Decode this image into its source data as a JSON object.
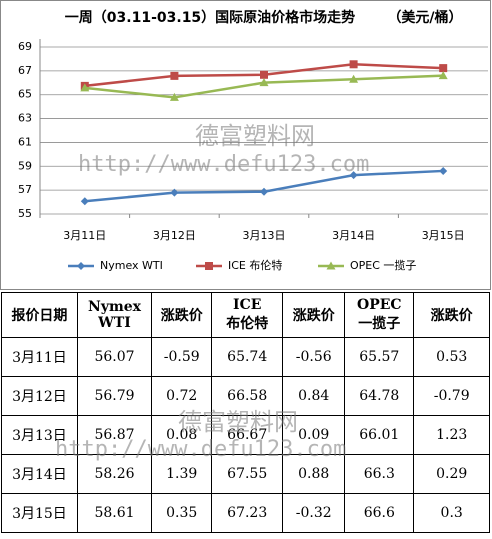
{
  "chart_data": {
    "type": "line",
    "title": "一周（03.11-03.15）国际原油价格市场走势",
    "subtitle": "（美元/桶）",
    "categories": [
      "3月11日",
      "3月12日",
      "3月13日",
      "3月14日",
      "3月15日"
    ],
    "series": [
      {
        "name": "Nymex WTI",
        "color": "#4a7ebb",
        "marker": "diamond",
        "values": [
          56.07,
          56.79,
          56.87,
          58.26,
          58.61
        ]
      },
      {
        "name": "ICE 布伦特",
        "color": "#be4b48",
        "marker": "square",
        "values": [
          65.74,
          66.58,
          66.67,
          67.55,
          67.23
        ]
      },
      {
        "name": "OPEC 一揽子",
        "color": "#98b954",
        "marker": "triangle",
        "values": [
          65.57,
          64.78,
          66.01,
          66.3,
          66.6
        ]
      }
    ],
    "ylim": [
      55,
      69
    ],
    "yticks": [
      55,
      57,
      59,
      61,
      63,
      65,
      67,
      69
    ],
    "grid": true,
    "legend": "bottom"
  },
  "watermark": {
    "name": "德富塑料网",
    "url": "http://www.defu123.com"
  },
  "table": {
    "header": [
      [
        "报价日期"
      ],
      [
        "Nymex",
        "WTI"
      ],
      [
        "涨跌价"
      ],
      [
        "ICE",
        "布伦特"
      ],
      [
        "涨跌价"
      ],
      [
        "OPEC",
        "一揽子"
      ],
      [
        "涨跌价"
      ]
    ],
    "rows": [
      [
        "3月11日",
        "56.07",
        "-0.59",
        "65.74",
        "-0.56",
        "65.57",
        "0.53"
      ],
      [
        "3月12日",
        "56.79",
        "0.72",
        "66.58",
        "0.84",
        "64.78",
        "-0.79"
      ],
      [
        "3月13日",
        "56.87",
        "0.08",
        "66.67",
        "0.09",
        "66.01",
        "1.23"
      ],
      [
        "3月14日",
        "58.26",
        "1.39",
        "67.55",
        "0.88",
        "66.3",
        "0.29"
      ],
      [
        "3月15日",
        "58.61",
        "0.35",
        "67.23",
        "-0.32",
        "66.6",
        "0.3"
      ]
    ]
  }
}
